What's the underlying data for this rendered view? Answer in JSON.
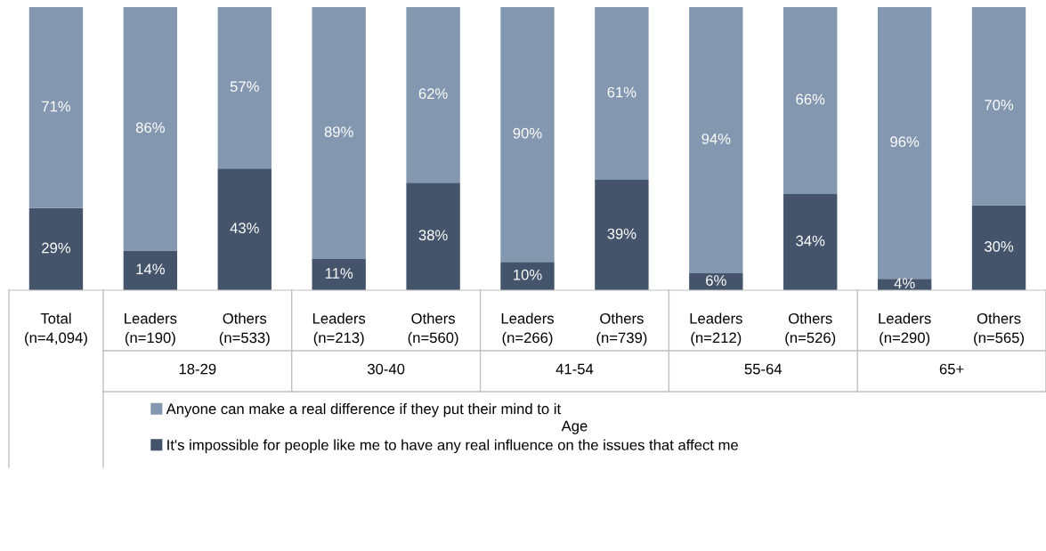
{
  "chart_data": {
    "type": "bar",
    "stacked": true,
    "categories": [
      "Total\n(n=4,094)",
      "Leaders\n(n=190)",
      "Others\n(n=533)",
      "Leaders\n(n=213)",
      "Others\n(n=560)",
      "Leaders\n(n=266)",
      "Others\n(n=739)",
      "Leaders\n(n=212)",
      "Others\n(n=526)",
      "Leaders\n(n=290)",
      "Others\n(n=565)"
    ],
    "series": [
      {
        "name": "It's impossible for people like me to have any real influence on the issues that affect me",
        "color": "#44546a",
        "values": [
          29,
          14,
          43,
          11,
          38,
          10,
          39,
          6,
          34,
          4,
          30
        ],
        "value_labels": [
          "29%",
          "14%",
          "43%",
          "11%",
          "38%",
          "10%",
          "39%",
          "6%",
          "34%",
          "4%",
          "30%"
        ]
      },
      {
        "name": "Anyone can make a real difference if they put their mind to it",
        "color": "#8497b0",
        "values": [
          71,
          86,
          57,
          89,
          62,
          90,
          61,
          94,
          66,
          96,
          70
        ],
        "value_labels": [
          "71%",
          "86%",
          "57%",
          "89%",
          "62%",
          "90%",
          "61%",
          "94%",
          "66%",
          "96%",
          "70%"
        ]
      }
    ],
    "tick_labels": "x",
    "legend": "bottom",
    "annotations": [
      "18-29",
      "30-40",
      "41-54",
      "55-64",
      "65+",
      "Age"
    ]
  }
}
